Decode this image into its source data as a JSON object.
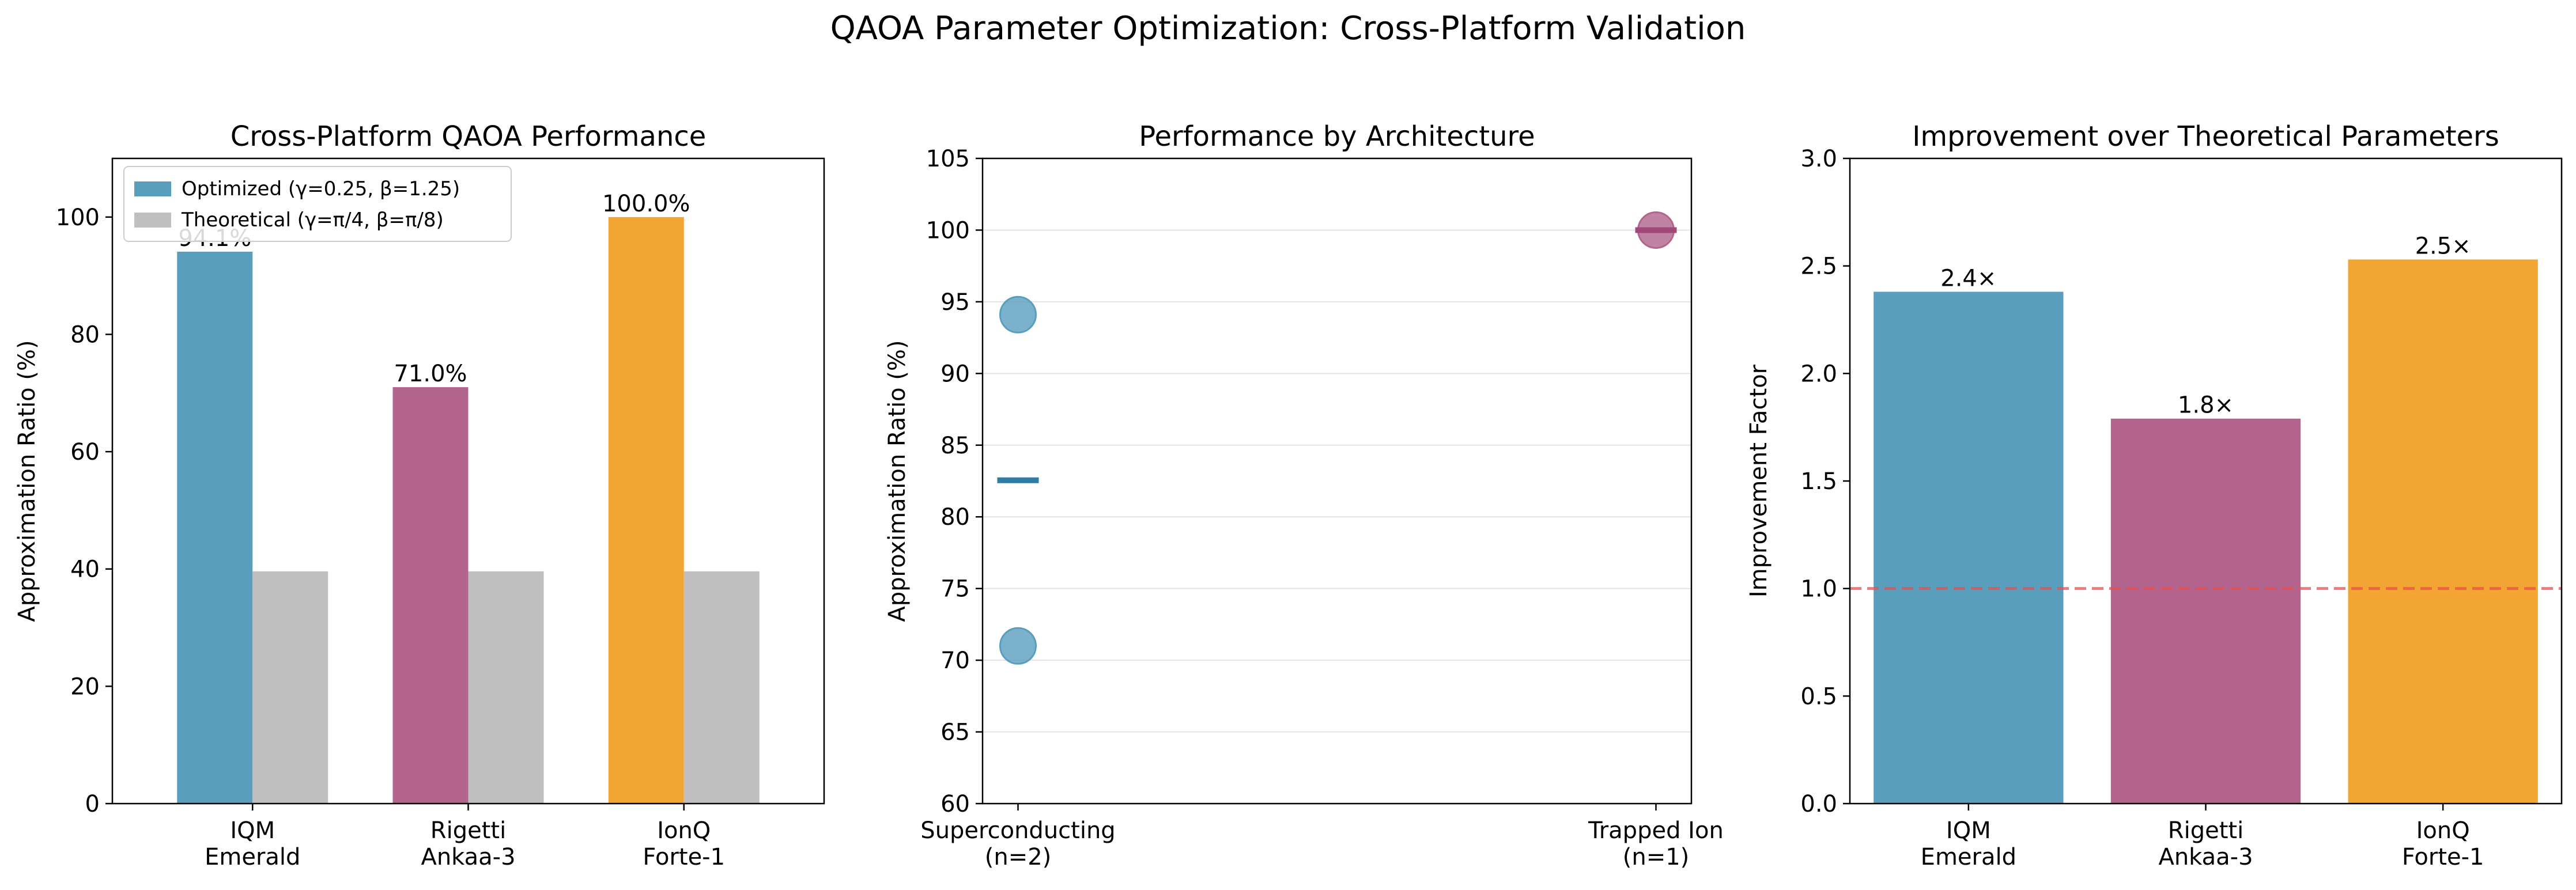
{
  "suptitle": "QAOA Parameter Optimization: Cross-Platform Validation",
  "colors": {
    "blue": "#5a9ebd",
    "magenta": "#b2648d",
    "orange": "#f2a533",
    "gray": "#bfbfbf",
    "blue_dark": "#2e7ea3",
    "magenta_dark": "#a04878",
    "ref_line": "#ee4d4d"
  },
  "chart_data": [
    {
      "type": "bar",
      "title": "Cross-Platform QAOA Performance",
      "xlabel": "",
      "ylabel": "Approximation Ratio (%)",
      "categories": [
        "IQM\nEmerald",
        "Rigetti\nAnkaa-3",
        "IonQ\nForte-1"
      ],
      "ylim": [
        0,
        110
      ],
      "yticks": [
        0,
        20,
        40,
        60,
        80,
        100
      ],
      "series": [
        {
          "name": "Optimized (γ=0.25, β=1.25)",
          "values": [
            94.1,
            71.0,
            100.0
          ],
          "colors": [
            "#5a9ebd",
            "#b2648d",
            "#f2a533"
          ],
          "labels": [
            "94.1%",
            "71.0%",
            "100.0%"
          ]
        },
        {
          "name": "Theoretical (γ=π/4, β=π/8)",
          "values": [
            39.6,
            39.6,
            39.6
          ],
          "color": "#bfbfbf"
        }
      ],
      "legend": "upper-left",
      "grid": false
    },
    {
      "type": "scatter",
      "title": "Performance by Architecture",
      "xlabel": "",
      "ylabel": "Approximation Ratio (%)",
      "categories": [
        "Superconducting\n(n=2)",
        "Trapped Ion\n(n=1)"
      ],
      "ylim": [
        60,
        105
      ],
      "yticks": [
        60,
        65,
        70,
        75,
        80,
        85,
        90,
        95,
        100,
        105
      ],
      "points": [
        {
          "category": 0,
          "value": 94.1,
          "color": "#5a9ebd"
        },
        {
          "category": 0,
          "value": 71.0,
          "color": "#5a9ebd"
        },
        {
          "category": 1,
          "value": 100.0,
          "color": "#b2648d"
        }
      ],
      "means": [
        {
          "category": 0,
          "value": 82.55,
          "color": "#2e7ea3"
        },
        {
          "category": 1,
          "value": 100.0,
          "color": "#a04878"
        }
      ],
      "grid": "y"
    },
    {
      "type": "bar",
      "title": "Improvement over Theoretical Parameters",
      "xlabel": "",
      "ylabel": "Improvement Factor",
      "categories": [
        "IQM\nEmerald",
        "Rigetti\nAnkaa-3",
        "IonQ\nForte-1"
      ],
      "values": [
        2.38,
        1.79,
        2.53
      ],
      "labels": [
        "2.4×",
        "1.8×",
        "2.5×"
      ],
      "colors": [
        "#5a9ebd",
        "#b2648d",
        "#f2a533"
      ],
      "ylim": [
        0,
        3.0
      ],
      "yticks": [
        0.0,
        0.5,
        1.0,
        1.5,
        2.0,
        2.5,
        3.0
      ],
      "reference_line": 1.0,
      "grid": false
    }
  ]
}
